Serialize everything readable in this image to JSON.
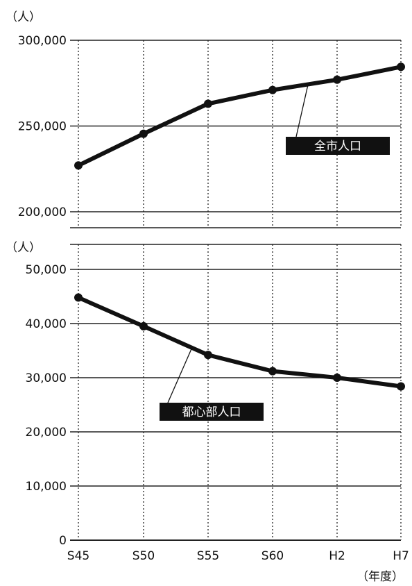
{
  "chart_data": [
    {
      "type": "line",
      "panel": "top",
      "unit_label": "（人）",
      "categories": [
        "S45",
        "S50",
        "S55",
        "S60",
        "H2",
        "H7"
      ],
      "series": [
        {
          "name": "全市人口",
          "values": [
            227000,
            245500,
            263000,
            271000,
            277000,
            284500
          ]
        }
      ],
      "ylim": [
        200000,
        300000
      ],
      "yticks": [
        200000,
        250000,
        300000
      ],
      "ytick_labels": [
        "200,000",
        "250,000",
        "300,000"
      ],
      "grid": "horizontal solid, vertical dotted"
    },
    {
      "type": "line",
      "panel": "bottom",
      "unit_label": "（人）",
      "categories": [
        "S45",
        "S50",
        "S55",
        "S60",
        "H2",
        "H7"
      ],
      "series": [
        {
          "name": "都心部人口",
          "values": [
            44800,
            39500,
            34200,
            31200,
            30000,
            28400
          ]
        }
      ],
      "ylim": [
        0,
        50000
      ],
      "yticks": [
        0,
        10000,
        20000,
        30000,
        40000,
        50000
      ],
      "ytick_labels": [
        "0",
        "10,000",
        "20,000",
        "30,000",
        "40,000",
        "50,000"
      ],
      "x_unit_label": "（年度）",
      "grid": "horizontal solid, vertical dotted"
    }
  ],
  "colors": {
    "line": "#111111",
    "label_bg": "#111111",
    "label_fg": "#ffffff",
    "grid": "#222222"
  }
}
